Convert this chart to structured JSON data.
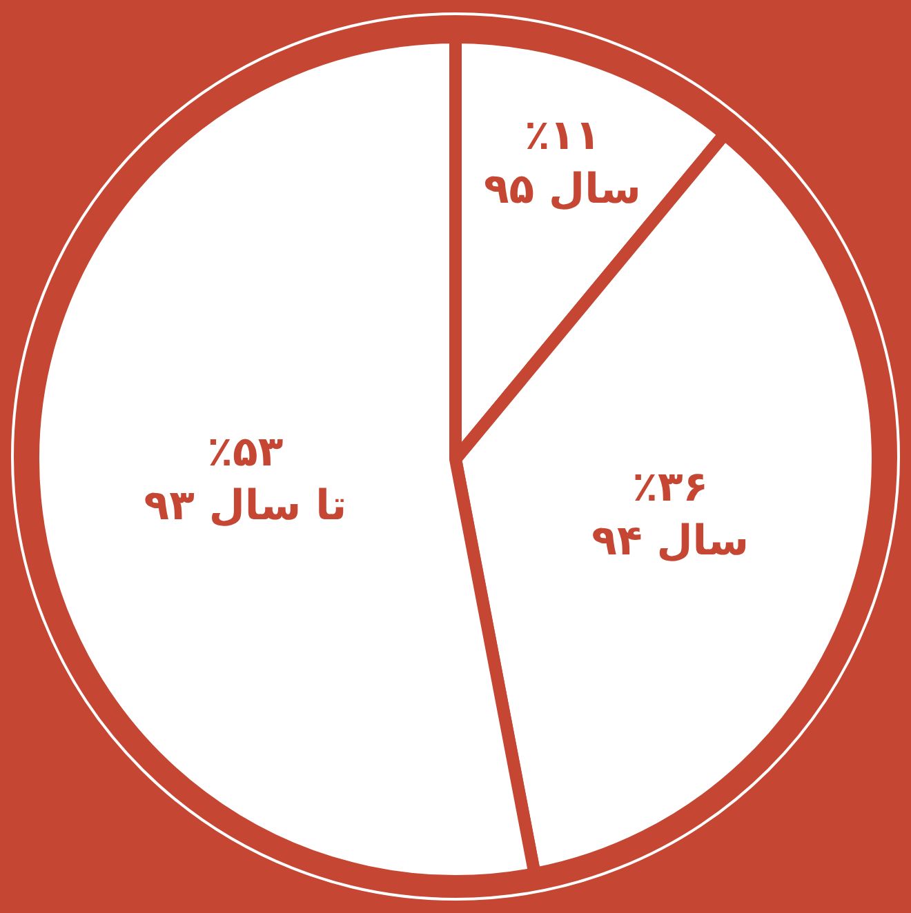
{
  "chart_data": {
    "type": "pie",
    "categories": [
      "سال ۹۵",
      "سال ۹۴",
      "تا سال ۹۳"
    ],
    "values": [
      11,
      36,
      53
    ],
    "value_labels": [
      "٪۱۱",
      "٪۳۶",
      "٪۵۳"
    ],
    "colors": [
      "#ffffff",
      "#ffffff",
      "#ffffff"
    ],
    "legend": false
  }
}
